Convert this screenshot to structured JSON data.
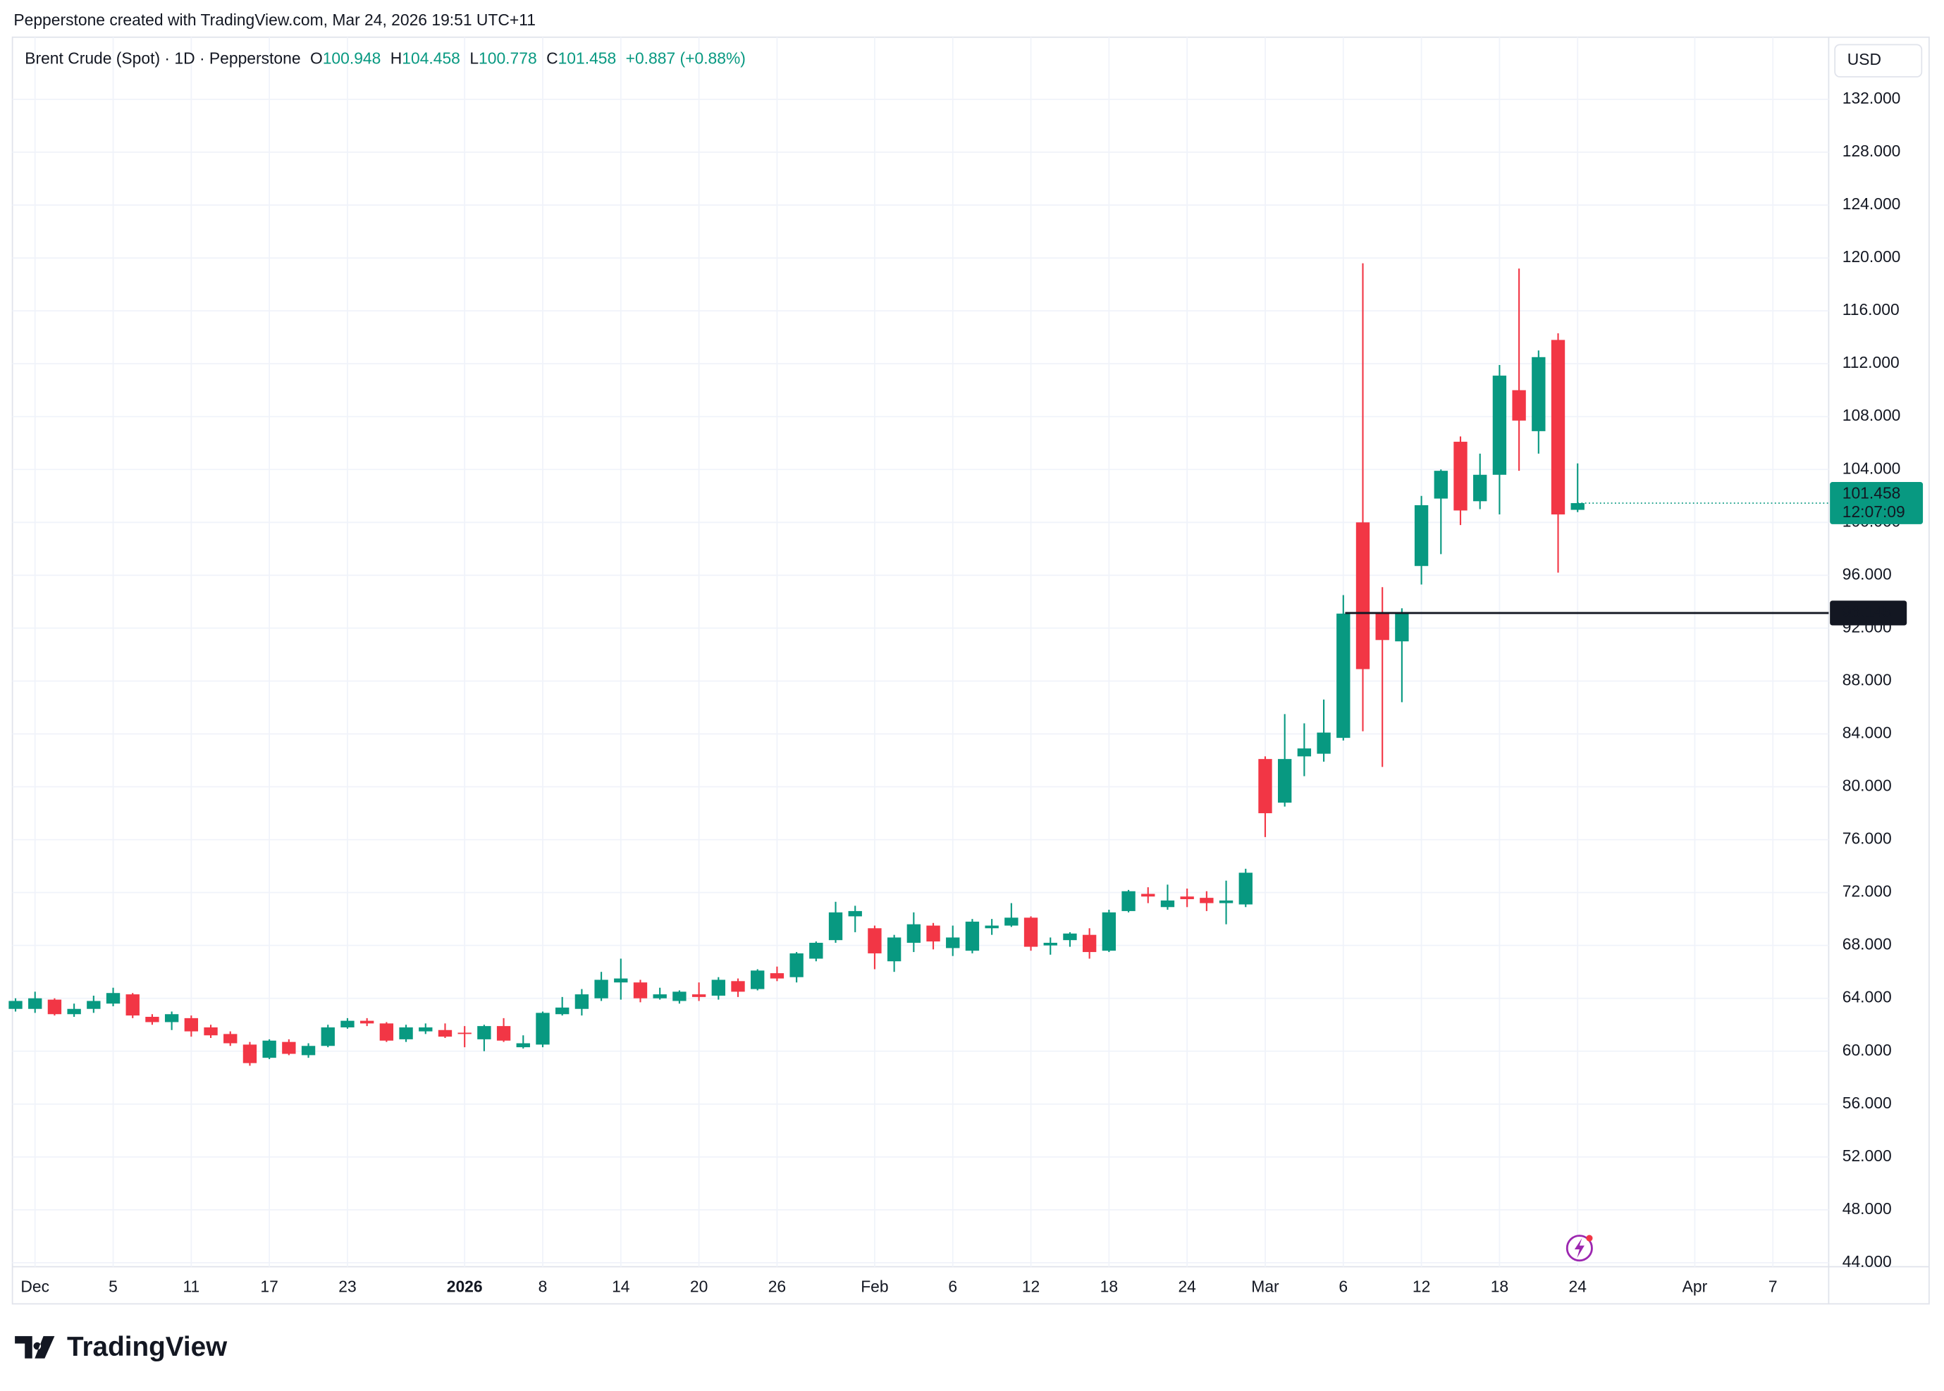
{
  "caption": "Pepperstone created with TradingView.com, Mar 24, 2026 19:51 UTC+11",
  "logo": "TradingView",
  "currency": "USD",
  "chart_data": {
    "type": "candlestick",
    "title": "Brent Crude (Spot) · 1D · Pepperstone",
    "ohlc_labels": [
      "O",
      "H",
      "L",
      "C"
    ],
    "change": "+0.887 (+0.88%)",
    "countdown": "12:07:09",
    "up_color": "#089981",
    "down_color": "#f23645",
    "grid": true,
    "hline": 93.145,
    "categories": [
      null,
      "Dec",
      null,
      null,
      null,
      "5",
      null,
      null,
      null,
      "11",
      null,
      null,
      null,
      "17",
      null,
      null,
      null,
      "23",
      null,
      null,
      null,
      null,
      null,
      "2026",
      null,
      null,
      null,
      "8",
      null,
      null,
      null,
      "14",
      null,
      null,
      null,
      "20",
      null,
      null,
      null,
      "26",
      null,
      null,
      null,
      null,
      "Feb",
      null,
      null,
      null,
      "6",
      null,
      null,
      null,
      "12",
      null,
      null,
      null,
      "18",
      null,
      null,
      null,
      "24",
      null,
      null,
      null,
      "Mar",
      null,
      null,
      null,
      "6",
      null,
      null,
      null,
      "12",
      null,
      null,
      null,
      "18",
      null,
      null,
      null,
      "24",
      null,
      null,
      null,
      null,
      null,
      "Apr",
      null,
      null,
      null,
      "7"
    ],
    "open": [
      63.2,
      63.2,
      63.9,
      62.8,
      63.2,
      63.6,
      64.3,
      62.6,
      62.2,
      62.5,
      61.8,
      61.3,
      60.5,
      59.5,
      60.7,
      59.7,
      60.4,
      61.8,
      62.3,
      62.1,
      60.9,
      61.5,
      61.6,
      61.4,
      60.9,
      61.9,
      60.3,
      60.5,
      62.8,
      63.2,
      64.0,
      65.2,
      65.2,
      64.0,
      63.8,
      64.3,
      64.2,
      65.3,
      64.7,
      65.9,
      65.6,
      67.0,
      68.4,
      70.2,
      69.3,
      66.8,
      68.2,
      69.5,
      67.8,
      67.6,
      69.3,
      69.5,
      70.1,
      68.0,
      68.4,
      68.8,
      67.6,
      70.6,
      71.9,
      70.9,
      71.7,
      71.6,
      71.2,
      71.1,
      82.1,
      78.8,
      82.3,
      82.5,
      83.7,
      100.0,
      93.2,
      91.0,
      96.7,
      101.8,
      106.1,
      101.6,
      103.6,
      110.0,
      106.9,
      113.8,
      100.948,
      null,
      null,
      null,
      null,
      null,
      null,
      null,
      null,
      null,
      null
    ],
    "high": [
      64.0,
      64.5,
      64.0,
      63.6,
      64.2,
      64.8,
      64.4,
      62.8,
      63.0,
      62.7,
      62.0,
      61.5,
      60.7,
      60.9,
      60.9,
      60.6,
      62.0,
      62.5,
      62.5,
      62.2,
      62.0,
      62.1,
      62.1,
      61.9,
      62.0,
      62.5,
      61.2,
      63.0,
      64.1,
      64.7,
      66.0,
      67.0,
      65.4,
      64.8,
      64.6,
      65.2,
      65.6,
      65.5,
      66.2,
      66.4,
      67.5,
      68.3,
      71.3,
      71.0,
      69.5,
      68.8,
      70.5,
      69.7,
      69.5,
      70.0,
      70.0,
      71.2,
      70.2,
      68.6,
      69.0,
      69.3,
      70.7,
      72.2,
      72.4,
      72.6,
      72.3,
      72.1,
      72.9,
      73.8,
      82.3,
      85.5,
      84.8,
      86.6,
      94.5,
      119.6,
      95.1,
      93.5,
      102.0,
      104.0,
      106.5,
      105.2,
      111.9,
      119.2,
      113.0,
      114.3,
      104.458,
      null,
      null,
      null,
      null,
      null,
      null,
      null,
      null,
      null,
      null
    ],
    "low": [
      63.0,
      62.9,
      62.7,
      62.6,
      62.9,
      63.4,
      62.5,
      62.0,
      61.6,
      61.1,
      61.0,
      60.4,
      58.9,
      59.4,
      59.7,
      59.5,
      60.3,
      61.7,
      61.9,
      60.7,
      60.7,
      61.3,
      61.0,
      60.3,
      60.0,
      60.7,
      60.2,
      60.3,
      62.7,
      62.7,
      63.8,
      63.9,
      63.7,
      63.9,
      63.6,
      63.8,
      63.9,
      64.1,
      64.6,
      65.3,
      65.2,
      66.8,
      68.2,
      69.0,
      66.2,
      66.0,
      67.5,
      67.7,
      67.2,
      67.4,
      68.8,
      69.4,
      67.6,
      67.3,
      67.9,
      67.0,
      67.5,
      70.5,
      71.2,
      70.7,
      70.9,
      70.6,
      69.6,
      70.9,
      76.2,
      78.5,
      80.8,
      81.9,
      83.5,
      84.2,
      81.5,
      86.4,
      95.3,
      97.6,
      99.8,
      101.0,
      100.6,
      103.9,
      105.2,
      96.2,
      100.778,
      null,
      null,
      null,
      null,
      null,
      null,
      null,
      null,
      null,
      null
    ],
    "close": [
      63.8,
      64.0,
      62.8,
      63.2,
      63.8,
      64.4,
      62.7,
      62.2,
      62.8,
      61.5,
      61.2,
      60.6,
      59.1,
      60.8,
      59.8,
      60.4,
      61.8,
      62.3,
      62.1,
      60.8,
      61.8,
      61.8,
      61.1,
      61.3,
      61.9,
      60.8,
      60.6,
      62.9,
      63.3,
      64.3,
      65.4,
      65.5,
      64.0,
      64.3,
      64.5,
      64.1,
      65.4,
      64.5,
      66.1,
      65.5,
      67.4,
      68.2,
      70.5,
      70.6,
      67.4,
      68.6,
      69.6,
      68.3,
      68.6,
      69.8,
      69.5,
      70.1,
      67.9,
      68.2,
      68.9,
      67.5,
      70.5,
      72.1,
      71.7,
      71.4,
      71.5,
      71.2,
      71.4,
      73.5,
      78.0,
      82.1,
      82.9,
      84.1,
      93.1,
      88.9,
      91.1,
      93.2,
      101.3,
      103.9,
      100.9,
      103.6,
      111.1,
      107.7,
      112.5,
      100.6,
      101.458,
      null,
      null,
      null,
      null,
      null,
      null,
      null,
      null,
      null,
      null
    ],
    "ylim": [
      43.7,
      136.7
    ],
    "yticks": [
      {
        "value": 44,
        "label": "44.000"
      },
      {
        "value": 48,
        "label": "48.000"
      },
      {
        "value": 52,
        "label": "52.000"
      },
      {
        "value": 56,
        "label": "56.000"
      },
      {
        "value": 60,
        "label": "60.000"
      },
      {
        "value": 64,
        "label": "64.000"
      },
      {
        "value": 68,
        "label": "68.000"
      },
      {
        "value": 72,
        "label": "72.000"
      },
      {
        "value": 76,
        "label": "76.000"
      },
      {
        "value": 80,
        "label": "80.000"
      },
      {
        "value": 84,
        "label": "84.000"
      },
      {
        "value": 88,
        "label": "88.000"
      },
      {
        "value": 92,
        "label": "92.000"
      },
      {
        "value": 96,
        "label": "96.000"
      },
      {
        "value": 100,
        "label": "100.000"
      },
      {
        "value": 104,
        "label": "104.000"
      },
      {
        "value": 108,
        "label": "108.000"
      },
      {
        "value": 112,
        "label": "112.000"
      },
      {
        "value": 116,
        "label": "116.000"
      },
      {
        "value": 120,
        "label": "120.000"
      },
      {
        "value": 124,
        "label": "124.000"
      },
      {
        "value": 128,
        "label": "128.000"
      },
      {
        "value": 132,
        "label": "132.000"
      }
    ]
  }
}
